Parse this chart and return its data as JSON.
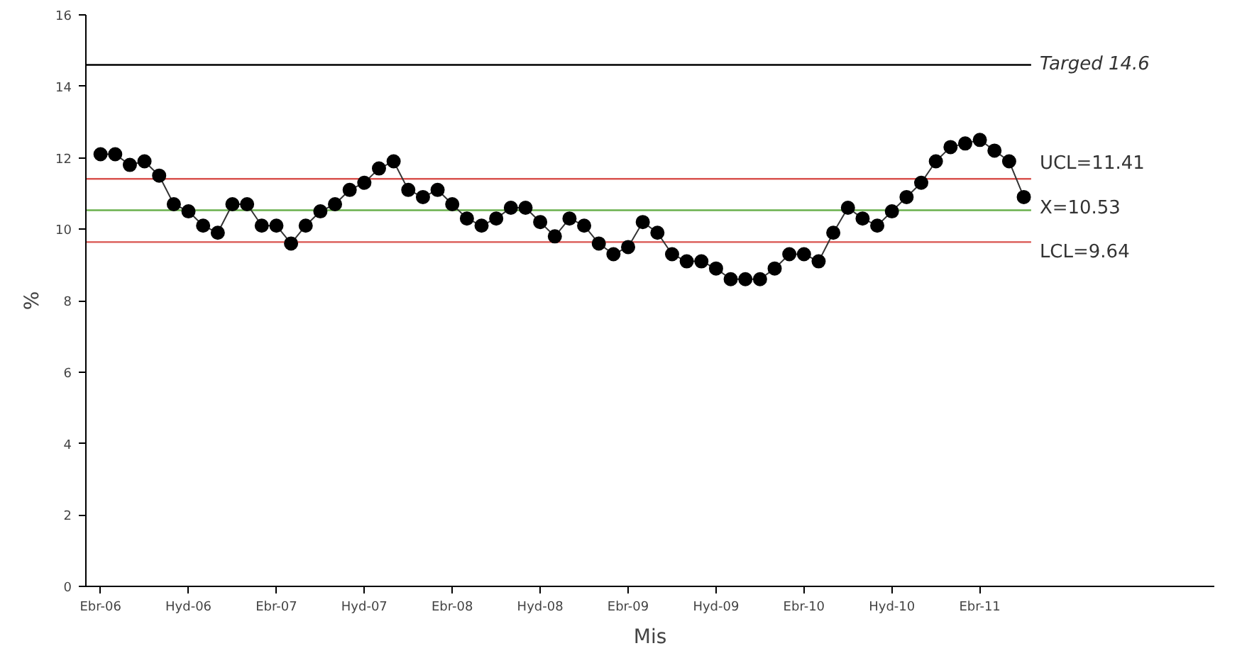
{
  "chart_data": {
    "type": "line",
    "xlabel": "Mis",
    "ylabel": "%",
    "categories": [
      "Ebr-06",
      null,
      null,
      null,
      null,
      null,
      "Hyd-06",
      null,
      null,
      null,
      null,
      null,
      "Ebr-07",
      null,
      null,
      null,
      null,
      null,
      "Hyd-07",
      null,
      null,
      null,
      null,
      null,
      "Ebr-08",
      null,
      null,
      null,
      null,
      null,
      "Hyd-08",
      null,
      null,
      null,
      null,
      null,
      "Ebr-09",
      null,
      null,
      null,
      null,
      null,
      "Hyd-09",
      null,
      null,
      null,
      null,
      null,
      "Ebr-10",
      null,
      null,
      null,
      null,
      null,
      "Hyd-10",
      null,
      null,
      null,
      null,
      null,
      "Ebr-11",
      null,
      null,
      null
    ],
    "series": [
      {
        "color": "#000000",
        "values": [
          12.1,
          12.1,
          11.8,
          11.9,
          11.5,
          10.7,
          10.5,
          10.1,
          9.9,
          10.7,
          10.7,
          10.1,
          10.1,
          9.6,
          10.1,
          10.5,
          10.7,
          11.1,
          11.3,
          11.7,
          11.9,
          11.1,
          10.9,
          11.1,
          10.7,
          10.3,
          10.1,
          10.3,
          10.6,
          10.6,
          10.2,
          9.8,
          10.3,
          10.1,
          9.6,
          9.3,
          9.5,
          10.2,
          9.9,
          9.3,
          9.1,
          9.1,
          8.9,
          8.6,
          8.6,
          8.6,
          8.9,
          9.3,
          9.3,
          9.1,
          9.9,
          10.6,
          10.3,
          10.1,
          10.5,
          10.9,
          11.3,
          11.9,
          12.3,
          12.4,
          12.5,
          12.2,
          11.9,
          10.9
        ]
      }
    ],
    "ylim": [
      0,
      16
    ],
    "yticks": [
      0,
      2,
      4,
      6,
      8,
      10,
      12,
      14,
      16
    ],
    "marker": "circle",
    "line_style": "solid",
    "grid": false,
    "ref_lines": [
      {
        "axis": "y",
        "value": 14.6,
        "label": "Targed 14.6",
        "color": "#000000",
        "line_style": "solid"
      },
      {
        "axis": "y",
        "value": 11.41,
        "label": "UCL=11.41",
        "color": "#d9534f",
        "line_style": "solid"
      },
      {
        "axis": "y",
        "value": 10.53,
        "label": "X=10.53",
        "color": "#6ab04c",
        "line_style": "solid"
      },
      {
        "axis": "y",
        "value": 9.64,
        "label": "LCL=9.64",
        "color": "#d9534f",
        "line_style": "solid"
      }
    ]
  }
}
